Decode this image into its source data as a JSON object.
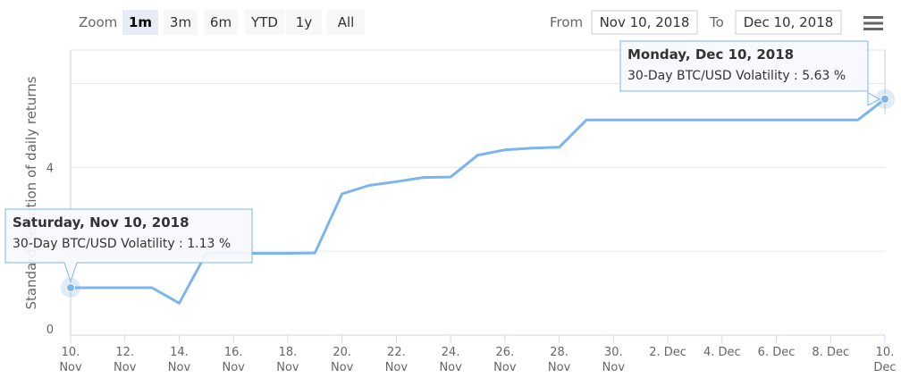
{
  "toolbar": {
    "zoom_label": "Zoom",
    "zoom_buttons": [
      "1m",
      "3m",
      "6m",
      "YTD",
      "1y",
      "All"
    ],
    "active_zoom": "1m",
    "from_label": "From",
    "from_value": "Nov 10, 2018",
    "to_label": "To",
    "to_value": "Dec 10, 2018",
    "menu_icon": "hamburger-menu-icon"
  },
  "chart_data": {
    "type": "line",
    "ylabel": "Standard deviation of daily returns",
    "ylim": [
      0,
      6.8
    ],
    "yticks": [
      0,
      4
    ],
    "grid": true,
    "series_color": "#7cb5ec",
    "series": [
      {
        "x": [
          "2018-11-10",
          "2018-11-11",
          "2018-11-12",
          "2018-11-13",
          "2018-11-14",
          "2018-11-15",
          "2018-11-16",
          "2018-11-17",
          "2018-11-18",
          "2018-11-19",
          "2018-11-20",
          "2018-11-21",
          "2018-11-22",
          "2018-11-23",
          "2018-11-24",
          "2018-11-25",
          "2018-11-26",
          "2018-11-27",
          "2018-11-28",
          "2018-11-29",
          "2018-11-30",
          "2018-12-01",
          "2018-12-02",
          "2018-12-03",
          "2018-12-04",
          "2018-12-05",
          "2018-12-06",
          "2018-12-07",
          "2018-12-08",
          "2018-12-09",
          "2018-12-10"
        ],
        "y": [
          1.13,
          1.13,
          1.13,
          1.13,
          0.76,
          1.95,
          1.95,
          1.95,
          1.95,
          1.96,
          3.37,
          3.57,
          3.66,
          3.76,
          3.77,
          4.29,
          4.42,
          4.46,
          4.48,
          5.13,
          5.13,
          5.13,
          5.13,
          5.13,
          5.13,
          5.13,
          5.13,
          5.13,
          5.13,
          5.13,
          5.63
        ]
      }
    ],
    "xticks": [
      {
        "top": "10.",
        "bottom": "Nov"
      },
      {
        "top": "12.",
        "bottom": "Nov"
      },
      {
        "top": "14.",
        "bottom": "Nov"
      },
      {
        "top": "16.",
        "bottom": "Nov"
      },
      {
        "top": "18.",
        "bottom": "Nov"
      },
      {
        "top": "20.",
        "bottom": "Nov"
      },
      {
        "top": "22.",
        "bottom": "Nov"
      },
      {
        "top": "24.",
        "bottom": "Nov"
      },
      {
        "top": "26.",
        "bottom": "Nov"
      },
      {
        "top": "28.",
        "bottom": "Nov"
      },
      {
        "top": "30.",
        "bottom": "Nov"
      },
      {
        "top": "2. Dec",
        "bottom": ""
      },
      {
        "top": "4. Dec",
        "bottom": ""
      },
      {
        "top": "6. Dec",
        "bottom": ""
      },
      {
        "top": "8. Dec",
        "bottom": ""
      },
      {
        "top": "10.",
        "bottom": "Dec"
      }
    ],
    "tooltips": [
      {
        "point_index": 0,
        "title": "Saturday, Nov 10, 2018",
        "body": "30-Day BTC/USD Volatility : 1.13 %"
      },
      {
        "point_index": 30,
        "title": "Monday, Dec 10, 2018",
        "body": "30-Day BTC/USD Volatility : 5.63 %"
      }
    ]
  }
}
